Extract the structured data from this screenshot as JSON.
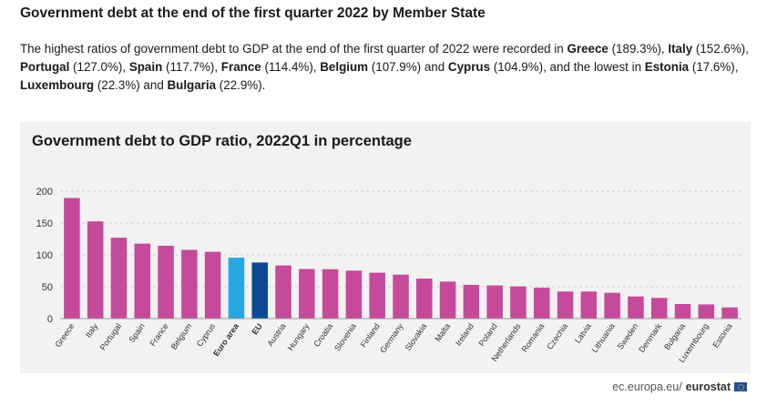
{
  "page": {
    "heading": "Government debt at the end of the first quarter 2022 by Member State",
    "paragraph": [
      {
        "t": "The highest ratios of government debt to GDP at the end of the first quarter of 2022 were recorded in ",
        "b": false
      },
      {
        "t": "Greece",
        "b": true
      },
      {
        "t": " (189.3%), ",
        "b": false
      },
      {
        "t": "Italy",
        "b": true
      },
      {
        "t": " (152.6%), ",
        "b": false
      },
      {
        "t": "Portugal",
        "b": true
      },
      {
        "t": " (127.0%), ",
        "b": false
      },
      {
        "t": "Spain",
        "b": true
      },
      {
        "t": " (117.7%), ",
        "b": false
      },
      {
        "t": "France",
        "b": true
      },
      {
        "t": " (114.4%), ",
        "b": false
      },
      {
        "t": "Belgium",
        "b": true
      },
      {
        "t": " (107.9%) and ",
        "b": false
      },
      {
        "t": "Cyprus",
        "b": true
      },
      {
        "t": " (104.9%), and the lowest in ",
        "b": false
      },
      {
        "t": "Estonia",
        "b": true
      },
      {
        "t": " (17.6%), ",
        "b": false
      },
      {
        "t": "Luxembourg",
        "b": true
      },
      {
        "t": " (22.3%) and ",
        "b": false
      },
      {
        "t": "Bulgaria",
        "b": true
      },
      {
        "t": " (22.9%).",
        "b": false
      }
    ],
    "source_prefix": "ec.europa.eu/",
    "source_brand": "eurostat"
  },
  "chart_data": {
    "type": "bar",
    "title": "Government debt to GDP ratio, 2022Q1 in percentage",
    "xlabel": "",
    "ylabel": "",
    "ylim": [
      0,
      200
    ],
    "yticks": [
      0,
      50,
      100,
      150,
      200
    ],
    "grid": true,
    "categories": [
      "Greece",
      "Italy",
      "Portugal",
      "Spain",
      "France",
      "Belgium",
      "Cyprus",
      "Euro area",
      "EU",
      "Austria",
      "Hungary",
      "Croatia",
      "Slovenia",
      "Finland",
      "Germany",
      "Slovakia",
      "Malta",
      "Ireland",
      "Poland",
      "Netherlands",
      "Romania",
      "Czechia",
      "Latvia",
      "Lithuania",
      "Sweden",
      "Denmark",
      "Bulgaria",
      "Luxembourg",
      "Estonia"
    ],
    "values": [
      189.3,
      152.6,
      127.0,
      117.7,
      114.4,
      107.9,
      104.9,
      95.6,
      88.0,
      83.4,
      77.9,
      77.5,
      75.3,
      72.0,
      69.0,
      62.8,
      58.1,
      53.0,
      52.0,
      50.5,
      48.5,
      42.5,
      42.5,
      40.5,
      34.8,
      32.5,
      22.9,
      22.3,
      17.6
    ],
    "bold_categories": [
      "Euro area",
      "EU"
    ],
    "colors": {
      "default": "#c64a9b",
      "Euro area": "#27a7e0",
      "EU": "#0a4a94",
      "grid": "#cfcfcf",
      "panel": "#f2f2f2"
    }
  }
}
